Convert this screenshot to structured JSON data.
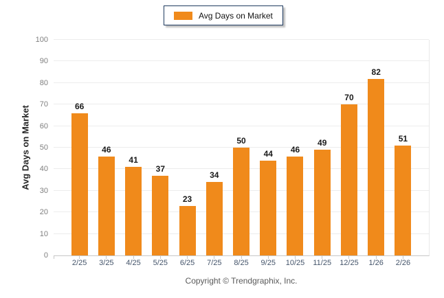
{
  "chart_data": {
    "type": "bar",
    "title": "Avg Days on Market",
    "categories": [
      "2/25",
      "3/25",
      "4/25",
      "5/25",
      "6/25",
      "7/25",
      "8/25",
      "9/25",
      "10/25",
      "11/25",
      "12/25",
      "1/26",
      "2/26"
    ],
    "values": [
      66,
      46,
      41,
      37,
      23,
      34,
      50,
      44,
      46,
      49,
      70,
      82,
      51
    ],
    "xlabel": "",
    "ylabel": "Avg Days on Market",
    "ylim": [
      0,
      100
    ],
    "ytick_step": 10,
    "grid": true,
    "legend_position": "top-center",
    "bar_color": "#F08A1B"
  },
  "legend": {
    "label": "Avg Days on Market",
    "swatch_color": "#F08A1B",
    "border_color": "#1E3A5F"
  },
  "footer": {
    "copyright": "Copyright © Trendgraphix, Inc."
  },
  "colors": {
    "bar": "#F08A1B",
    "gridline": "#ECECEC",
    "axis_line": "#C6C6C6",
    "y_tick_label": "#7F7F7F",
    "x_tick_label": "#44546A",
    "value_label": "#1A1A1A",
    "footer_text": "#595959"
  }
}
